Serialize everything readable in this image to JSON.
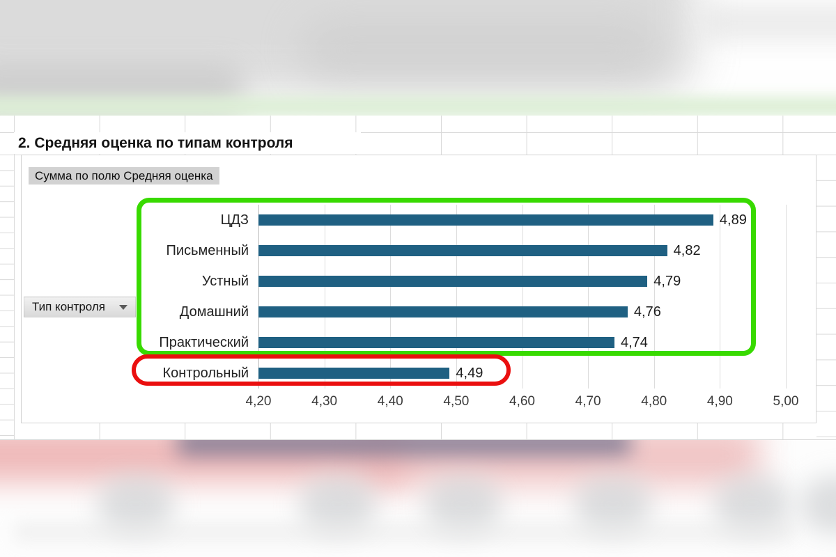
{
  "section": {
    "title": "2. Средняя оценка по типам контроля"
  },
  "pivot_controls": {
    "value_field_button": "Сумма по полю Средняя оценка",
    "category_field_button": "Тип контроля",
    "dropdown_glyph": "▼"
  },
  "chart_data": {
    "type": "bar",
    "orientation": "horizontal",
    "categories": [
      "ЦДЗ",
      "Письменный",
      "Устный",
      "Домашний",
      "Практический",
      "Контрольный"
    ],
    "values": [
      4.89,
      4.82,
      4.79,
      4.76,
      4.74,
      4.49
    ],
    "value_labels": [
      "4,89",
      "4,82",
      "4,79",
      "4,76",
      "4,74",
      "4,49"
    ],
    "xlim": [
      4.2,
      5.0
    ],
    "x_ticks": [
      "4,20",
      "4,30",
      "4,40",
      "4,50",
      "4,60",
      "4,70",
      "4,80",
      "4,90",
      "5,00"
    ],
    "grid": true,
    "legend": false,
    "bar_color": "#1F6082",
    "annotations": [
      {
        "shape": "rounded-rect",
        "color": "#38DA00",
        "covers": [
          "ЦДЗ",
          "Письменный",
          "Устный",
          "Домашний",
          "Практический"
        ]
      },
      {
        "shape": "ellipse",
        "color": "#EA0F0F",
        "covers": [
          "Контрольный"
        ]
      }
    ]
  },
  "colors": {
    "bar": "#1F6082",
    "highlight_green": "#38DA00",
    "highlight_red": "#EA0F0F",
    "gridline": "#DCDCDC",
    "button_gray": "#D2D2D2"
  }
}
